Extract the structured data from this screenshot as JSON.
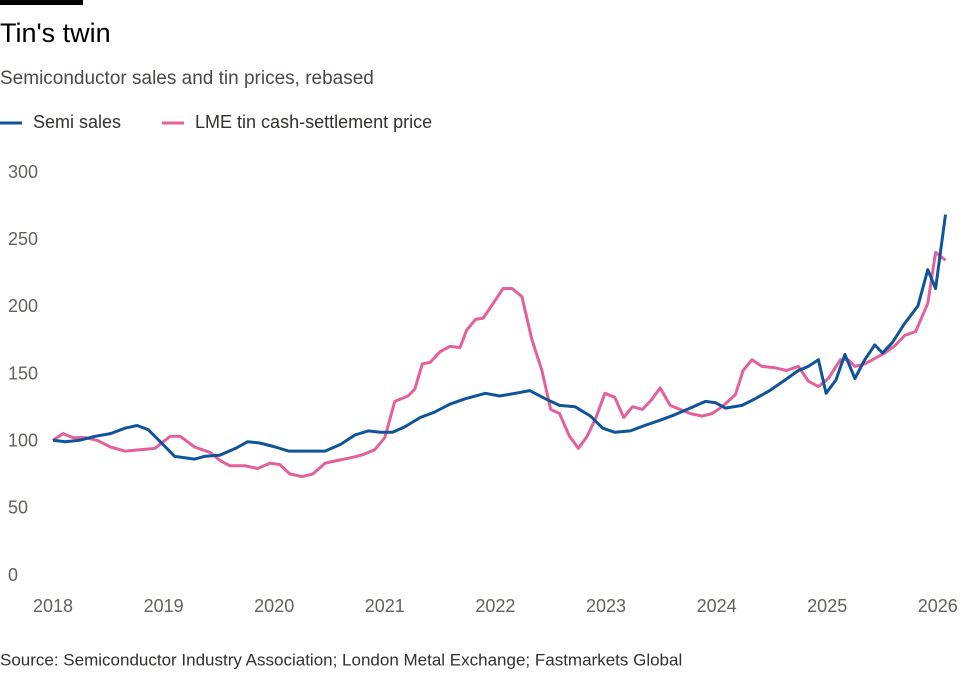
{
  "chart_data": {
    "type": "line",
    "title": "Tin's twin",
    "subtitle": "Semiconductor sales and tin prices, rebased",
    "source": "Source: Semiconductor Industry Association; London Metal Exchange; Fastmarkets Global",
    "xlim": [
      2018,
      2026.1
    ],
    "xticks": [
      2018,
      2019,
      2020,
      2021,
      2022,
      2023,
      2024,
      2025,
      2026
    ],
    "ylim": [
      0,
      300
    ],
    "yticks": [
      0,
      50,
      100,
      150,
      200,
      250,
      300
    ],
    "grid": false,
    "series": [
      {
        "name": "Semi sales",
        "color": "#0f5499",
        "x": [
          2018.0,
          2018.11,
          2018.24,
          2018.38,
          2018.52,
          2018.65,
          2018.76,
          2018.86,
          2018.97,
          2019.1,
          2019.28,
          2019.37,
          2019.51,
          2019.65,
          2019.76,
          2019.87,
          2020.01,
          2020.13,
          2020.23,
          2020.37,
          2020.46,
          2020.6,
          2020.73,
          2020.85,
          2020.96,
          2021.07,
          2021.18,
          2021.32,
          2021.45,
          2021.59,
          2021.73,
          2021.91,
          2022.04,
          2022.18,
          2022.31,
          2022.45,
          2022.58,
          2022.72,
          2022.86,
          2022.97,
          2023.08,
          2023.22,
          2023.35,
          2023.49,
          2023.62,
          2023.76,
          2023.9,
          2023.99,
          2024.08,
          2024.23,
          2024.35,
          2024.48,
          2024.62,
          2024.74,
          2024.83,
          2024.92,
          2024.99,
          2025.08,
          2025.16,
          2025.25,
          2025.34,
          2025.43,
          2025.5,
          2025.59,
          2025.7,
          2025.82,
          2025.91,
          2025.98,
          2026.07
        ],
        "values": [
          101,
          100,
          101,
          104,
          106,
          110,
          112,
          109,
          100,
          89,
          87,
          89,
          90,
          95,
          100,
          99,
          96,
          93,
          93,
          93,
          93,
          98,
          105,
          108,
          107,
          107,
          111,
          118,
          122,
          128,
          132,
          136,
          134,
          136,
          138,
          132,
          127,
          126,
          119,
          110,
          107,
          108,
          112,
          116,
          120,
          125,
          130,
          129,
          125,
          127,
          132,
          138,
          146,
          153,
          156,
          161,
          136,
          146,
          165,
          147,
          161,
          172,
          166,
          174,
          188,
          201,
          228,
          214,
          269
        ]
      },
      {
        "name": "LME tin cash-settlement price",
        "color": "#e3609a",
        "x": [
          2018.0,
          2018.09,
          2018.18,
          2018.29,
          2018.4,
          2018.52,
          2018.65,
          2018.79,
          2018.92,
          2019.06,
          2019.15,
          2019.28,
          2019.42,
          2019.51,
          2019.6,
          2019.74,
          2019.85,
          2019.96,
          2020.05,
          2020.14,
          2020.25,
          2020.35,
          2020.46,
          2020.57,
          2020.69,
          2020.79,
          2020.91,
          2021.0,
          2021.09,
          2021.21,
          2021.27,
          2021.34,
          2021.41,
          2021.5,
          2021.59,
          2021.68,
          2021.74,
          2021.82,
          2021.89,
          2021.98,
          2022.07,
          2022.15,
          2022.24,
          2022.33,
          2022.42,
          2022.5,
          2022.58,
          2022.67,
          2022.75,
          2022.83,
          2022.91,
          2022.99,
          2023.08,
          2023.16,
          2023.24,
          2023.33,
          2023.41,
          2023.49,
          2023.58,
          2023.67,
          2023.76,
          2023.87,
          2023.96,
          2024.05,
          2024.17,
          2024.24,
          2024.32,
          2024.41,
          2024.53,
          2024.63,
          2024.74,
          2024.83,
          2024.92,
          2025.01,
          2025.12,
          2025.19,
          2025.25,
          2025.34,
          2025.43,
          2025.52,
          2025.62,
          2025.7,
          2025.8,
          2025.91,
          2025.98,
          2026.07
        ],
        "values": [
          101,
          106,
          103,
          103,
          101,
          96,
          93,
          94,
          95,
          104,
          104,
          96,
          92,
          86,
          82,
          82,
          80,
          84,
          83,
          76,
          74,
          76,
          84,
          86,
          88,
          90,
          94,
          103,
          130,
          134,
          139,
          158,
          159,
          167,
          171,
          170,
          183,
          191,
          192,
          203,
          214,
          214,
          208,
          176,
          153,
          124,
          121,
          104,
          95,
          104,
          118,
          136,
          133,
          118,
          126,
          124,
          131,
          140,
          127,
          124,
          121,
          119,
          121,
          126,
          135,
          153,
          161,
          156,
          155,
          153,
          156,
          145,
          141,
          147,
          161,
          161,
          156,
          158,
          162,
          166,
          172,
          179,
          182,
          203,
          241,
          235
        ]
      }
    ]
  }
}
